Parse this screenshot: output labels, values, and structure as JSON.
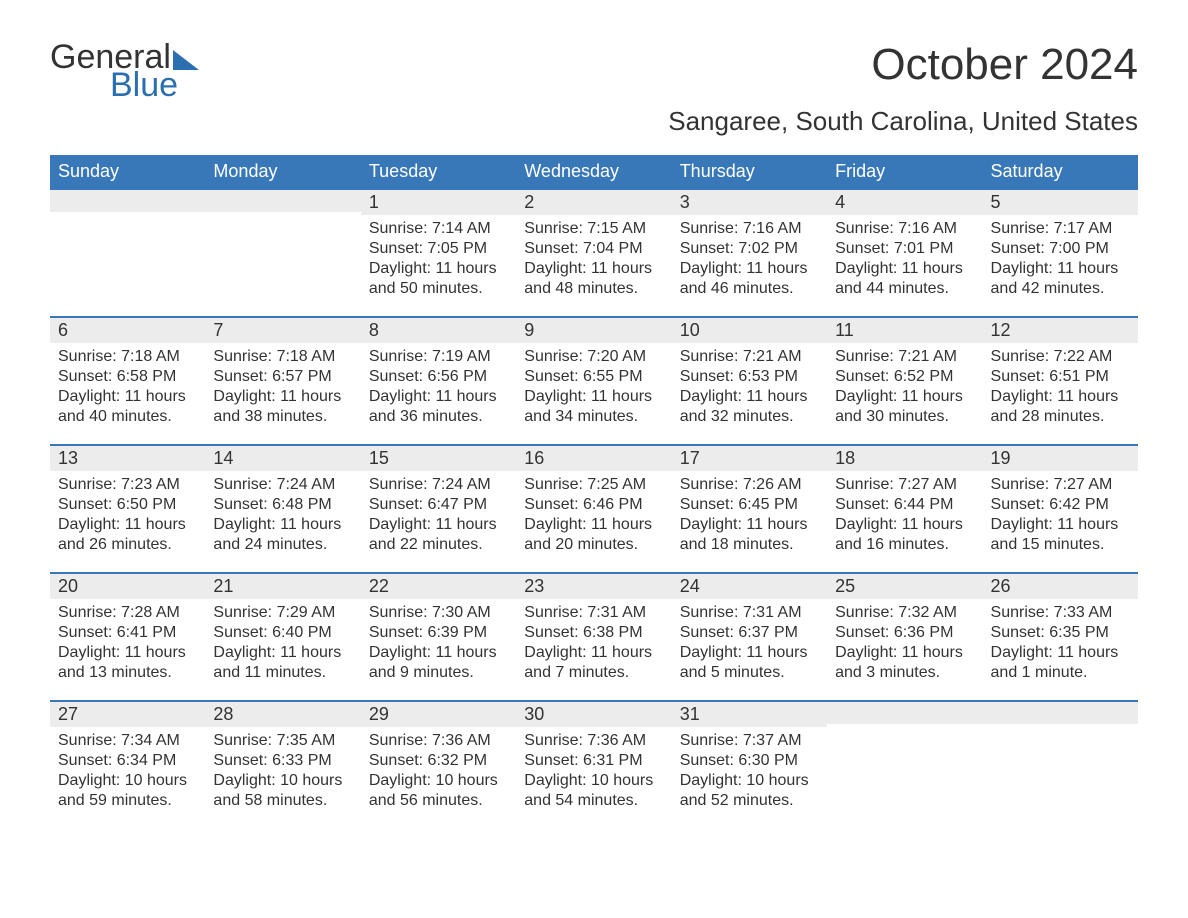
{
  "logo": {
    "text1": "General",
    "text2": "Blue"
  },
  "title": "October 2024",
  "location": "Sangaree, South Carolina, United States",
  "colors": {
    "header_bg": "#3878b8",
    "header_text": "#ffffff",
    "daynum_bg": "#ececec",
    "border_top": "#3878b8",
    "body_text": "#333333",
    "logo_blue": "#2c6fb0"
  },
  "weekdays": [
    "Sunday",
    "Monday",
    "Tuesday",
    "Wednesday",
    "Thursday",
    "Friday",
    "Saturday"
  ],
  "weeks": [
    [
      {
        "day": "",
        "lines": []
      },
      {
        "day": "",
        "lines": []
      },
      {
        "day": "1",
        "lines": [
          "Sunrise: 7:14 AM",
          "Sunset: 7:05 PM",
          "Daylight: 11 hours",
          "and 50 minutes."
        ]
      },
      {
        "day": "2",
        "lines": [
          "Sunrise: 7:15 AM",
          "Sunset: 7:04 PM",
          "Daylight: 11 hours",
          "and 48 minutes."
        ]
      },
      {
        "day": "3",
        "lines": [
          "Sunrise: 7:16 AM",
          "Sunset: 7:02 PM",
          "Daylight: 11 hours",
          "and 46 minutes."
        ]
      },
      {
        "day": "4",
        "lines": [
          "Sunrise: 7:16 AM",
          "Sunset: 7:01 PM",
          "Daylight: 11 hours",
          "and 44 minutes."
        ]
      },
      {
        "day": "5",
        "lines": [
          "Sunrise: 7:17 AM",
          "Sunset: 7:00 PM",
          "Daylight: 11 hours",
          "and 42 minutes."
        ]
      }
    ],
    [
      {
        "day": "6",
        "lines": [
          "Sunrise: 7:18 AM",
          "Sunset: 6:58 PM",
          "Daylight: 11 hours",
          "and 40 minutes."
        ]
      },
      {
        "day": "7",
        "lines": [
          "Sunrise: 7:18 AM",
          "Sunset: 6:57 PM",
          "Daylight: 11 hours",
          "and 38 minutes."
        ]
      },
      {
        "day": "8",
        "lines": [
          "Sunrise: 7:19 AM",
          "Sunset: 6:56 PM",
          "Daylight: 11 hours",
          "and 36 minutes."
        ]
      },
      {
        "day": "9",
        "lines": [
          "Sunrise: 7:20 AM",
          "Sunset: 6:55 PM",
          "Daylight: 11 hours",
          "and 34 minutes."
        ]
      },
      {
        "day": "10",
        "lines": [
          "Sunrise: 7:21 AM",
          "Sunset: 6:53 PM",
          "Daylight: 11 hours",
          "and 32 minutes."
        ]
      },
      {
        "day": "11",
        "lines": [
          "Sunrise: 7:21 AM",
          "Sunset: 6:52 PM",
          "Daylight: 11 hours",
          "and 30 minutes."
        ]
      },
      {
        "day": "12",
        "lines": [
          "Sunrise: 7:22 AM",
          "Sunset: 6:51 PM",
          "Daylight: 11 hours",
          "and 28 minutes."
        ]
      }
    ],
    [
      {
        "day": "13",
        "lines": [
          "Sunrise: 7:23 AM",
          "Sunset: 6:50 PM",
          "Daylight: 11 hours",
          "and 26 minutes."
        ]
      },
      {
        "day": "14",
        "lines": [
          "Sunrise: 7:24 AM",
          "Sunset: 6:48 PM",
          "Daylight: 11 hours",
          "and 24 minutes."
        ]
      },
      {
        "day": "15",
        "lines": [
          "Sunrise: 7:24 AM",
          "Sunset: 6:47 PM",
          "Daylight: 11 hours",
          "and 22 minutes."
        ]
      },
      {
        "day": "16",
        "lines": [
          "Sunrise: 7:25 AM",
          "Sunset: 6:46 PM",
          "Daylight: 11 hours",
          "and 20 minutes."
        ]
      },
      {
        "day": "17",
        "lines": [
          "Sunrise: 7:26 AM",
          "Sunset: 6:45 PM",
          "Daylight: 11 hours",
          "and 18 minutes."
        ]
      },
      {
        "day": "18",
        "lines": [
          "Sunrise: 7:27 AM",
          "Sunset: 6:44 PM",
          "Daylight: 11 hours",
          "and 16 minutes."
        ]
      },
      {
        "day": "19",
        "lines": [
          "Sunrise: 7:27 AM",
          "Sunset: 6:42 PM",
          "Daylight: 11 hours",
          "and 15 minutes."
        ]
      }
    ],
    [
      {
        "day": "20",
        "lines": [
          "Sunrise: 7:28 AM",
          "Sunset: 6:41 PM",
          "Daylight: 11 hours",
          "and 13 minutes."
        ]
      },
      {
        "day": "21",
        "lines": [
          "Sunrise: 7:29 AM",
          "Sunset: 6:40 PM",
          "Daylight: 11 hours",
          "and 11 minutes."
        ]
      },
      {
        "day": "22",
        "lines": [
          "Sunrise: 7:30 AM",
          "Sunset: 6:39 PM",
          "Daylight: 11 hours",
          "and 9 minutes."
        ]
      },
      {
        "day": "23",
        "lines": [
          "Sunrise: 7:31 AM",
          "Sunset: 6:38 PM",
          "Daylight: 11 hours",
          "and 7 minutes."
        ]
      },
      {
        "day": "24",
        "lines": [
          "Sunrise: 7:31 AM",
          "Sunset: 6:37 PM",
          "Daylight: 11 hours",
          "and 5 minutes."
        ]
      },
      {
        "day": "25",
        "lines": [
          "Sunrise: 7:32 AM",
          "Sunset: 6:36 PM",
          "Daylight: 11 hours",
          "and 3 minutes."
        ]
      },
      {
        "day": "26",
        "lines": [
          "Sunrise: 7:33 AM",
          "Sunset: 6:35 PM",
          "Daylight: 11 hours",
          "and 1 minute."
        ]
      }
    ],
    [
      {
        "day": "27",
        "lines": [
          "Sunrise: 7:34 AM",
          "Sunset: 6:34 PM",
          "Daylight: 10 hours",
          "and 59 minutes."
        ]
      },
      {
        "day": "28",
        "lines": [
          "Sunrise: 7:35 AM",
          "Sunset: 6:33 PM",
          "Daylight: 10 hours",
          "and 58 minutes."
        ]
      },
      {
        "day": "29",
        "lines": [
          "Sunrise: 7:36 AM",
          "Sunset: 6:32 PM",
          "Daylight: 10 hours",
          "and 56 minutes."
        ]
      },
      {
        "day": "30",
        "lines": [
          "Sunrise: 7:36 AM",
          "Sunset: 6:31 PM",
          "Daylight: 10 hours",
          "and 54 minutes."
        ]
      },
      {
        "day": "31",
        "lines": [
          "Sunrise: 7:37 AM",
          "Sunset: 6:30 PM",
          "Daylight: 10 hours",
          "and 52 minutes."
        ]
      },
      {
        "day": "",
        "lines": []
      },
      {
        "day": "",
        "lines": []
      }
    ]
  ]
}
